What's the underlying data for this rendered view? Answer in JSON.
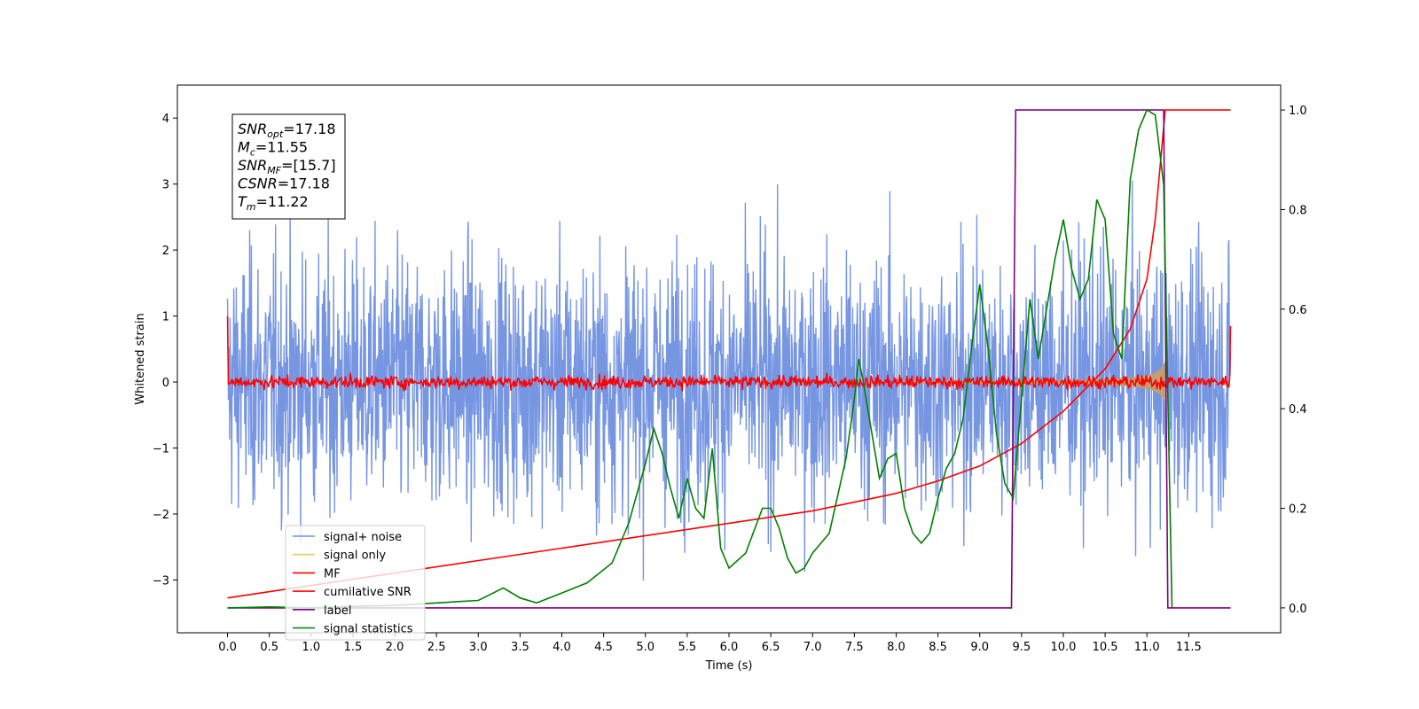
{
  "chart_data": {
    "type": "line",
    "xlabel": "Time (s)",
    "ylabel": "Whitened strain",
    "xlim": [
      -0.6,
      12.6
    ],
    "ylim": [
      -3.8,
      4.5
    ],
    "ylim_right": [
      -0.05,
      1.05
    ],
    "x_ticks": [
      "0.0",
      "0.5",
      "1.0",
      "1.5",
      "2.0",
      "2.5",
      "3.0",
      "3.5",
      "4.0",
      "4.5",
      "5.0",
      "5.5",
      "6.0",
      "6.5",
      "7.0",
      "7.5",
      "8.0",
      "8.5",
      "9.0",
      "9.5",
      "10.0",
      "10.5",
      "11.0",
      "11.5"
    ],
    "y_ticks": [
      "4",
      "3",
      "2",
      "1",
      "0",
      "−1",
      "−2",
      "−3"
    ],
    "y_ticks_right": [
      "1.0",
      "0.8",
      "0.6",
      "0.4",
      "0.2",
      "0.0"
    ],
    "legend_position": "lower-left",
    "annotation": [
      {
        "base": "SNR",
        "sub": "opt",
        "value": "=17.18"
      },
      {
        "base": "M",
        "sub": "c",
        "value": "=11.55"
      },
      {
        "base": "SNR",
        "sub": "MF",
        "value": "=[15.7]"
      },
      {
        "base": "CSNR",
        "sub": "",
        "value": "=17.18"
      },
      {
        "base": "T",
        "sub": "m",
        "value": "=11.22"
      }
    ],
    "series": [
      {
        "name": "signal+ noise",
        "color": "#7090e0",
        "axis": "left",
        "description_values": {
          "time_range": [
            0.0,
            12.0
          ],
          "amplitude_range": [
            -3.4,
            3.5
          ]
        }
      },
      {
        "name": "signal only",
        "color": "#f5c860",
        "axis": "left",
        "description_values": {
          "merger_time": 11.22
        }
      },
      {
        "name": "MF",
        "color": "#ff0000",
        "axis": "left",
        "description_values": {
          "level": 0.0
        }
      },
      {
        "name": "cumilative SNR",
        "color": "#ff0000",
        "axis": "right",
        "x": [
          0.0,
          1.0,
          2.0,
          3.0,
          4.0,
          5.0,
          6.0,
          7.0,
          8.0,
          8.5,
          9.0,
          9.5,
          10.0,
          10.5,
          10.8,
          11.0,
          11.1,
          11.22,
          12.0
        ],
        "values": [
          0.02,
          0.045,
          0.07,
          0.095,
          0.12,
          0.145,
          0.17,
          0.195,
          0.23,
          0.255,
          0.285,
          0.33,
          0.395,
          0.48,
          0.56,
          0.66,
          0.78,
          1.0,
          1.0
        ]
      },
      {
        "name": "label",
        "color": "#800080",
        "axis": "right",
        "x": [
          0.0,
          9.38,
          9.43,
          11.2,
          11.25,
          12.0
        ],
        "values": [
          0.0,
          0.0,
          1.0,
          1.0,
          0.0,
          0.0
        ]
      },
      {
        "name": "signal statistics",
        "color": "#008000",
        "axis": "right",
        "x": [
          0.0,
          0.5,
          1.0,
          1.5,
          2.0,
          2.5,
          3.0,
          3.3,
          3.5,
          3.7,
          4.0,
          4.3,
          4.6,
          4.8,
          5.0,
          5.1,
          5.2,
          5.3,
          5.4,
          5.5,
          5.6,
          5.7,
          5.8,
          5.9,
          6.0,
          6.2,
          6.4,
          6.5,
          6.6,
          6.7,
          6.8,
          6.9,
          7.0,
          7.2,
          7.4,
          7.5,
          7.55,
          7.6,
          7.7,
          7.8,
          7.9,
          8.0,
          8.1,
          8.2,
          8.3,
          8.4,
          8.5,
          8.6,
          8.7,
          8.8,
          8.9,
          9.0,
          9.1,
          9.2,
          9.3,
          9.4,
          9.5,
          9.6,
          9.7,
          9.8,
          9.9,
          10.0,
          10.1,
          10.2,
          10.3,
          10.4,
          10.5,
          10.6,
          10.7,
          10.8,
          10.9,
          11.0,
          11.1,
          11.2,
          11.3
        ],
        "values": [
          0.0,
          0.002,
          0.0,
          0.003,
          0.005,
          0.01,
          0.015,
          0.04,
          0.02,
          0.01,
          0.03,
          0.05,
          0.09,
          0.17,
          0.29,
          0.36,
          0.31,
          0.24,
          0.18,
          0.26,
          0.2,
          0.18,
          0.32,
          0.12,
          0.08,
          0.11,
          0.2,
          0.2,
          0.16,
          0.1,
          0.07,
          0.08,
          0.11,
          0.15,
          0.3,
          0.42,
          0.5,
          0.46,
          0.36,
          0.26,
          0.3,
          0.31,
          0.2,
          0.15,
          0.13,
          0.15,
          0.22,
          0.28,
          0.31,
          0.38,
          0.52,
          0.65,
          0.52,
          0.35,
          0.25,
          0.22,
          0.42,
          0.62,
          0.5,
          0.6,
          0.7,
          0.78,
          0.68,
          0.62,
          0.66,
          0.82,
          0.78,
          0.55,
          0.5,
          0.86,
          0.96,
          1.0,
          0.99,
          0.85,
          0.0
        ]
      }
    ]
  }
}
